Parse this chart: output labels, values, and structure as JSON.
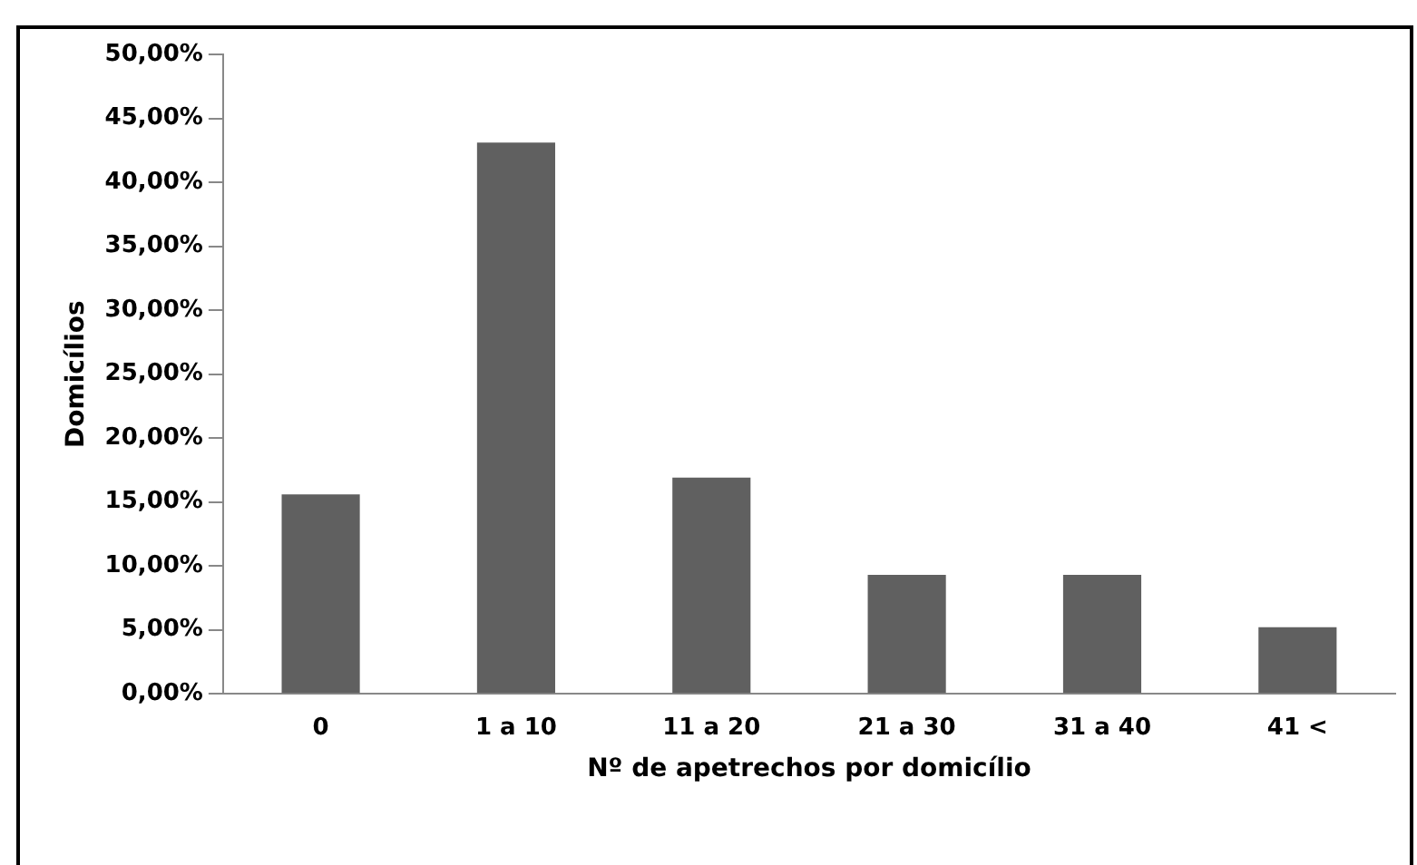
{
  "chart_data": {
    "type": "bar",
    "xlabel": "Nº de apetrechos por domicílio",
    "ylabel": "Domicílios",
    "categories": [
      "0",
      "1 a 10",
      "11 a 20",
      "21 a 30",
      "31 a 40",
      "41 <"
    ],
    "values": [
      15.6,
      43.1,
      16.9,
      9.3,
      9.3,
      5.2
    ],
    "color": "#606060",
    "ylim": [
      0,
      50
    ],
    "yticks": [
      {
        "value": 0,
        "label": "0,00%"
      },
      {
        "value": 5,
        "label": "5,00%"
      },
      {
        "value": 10,
        "label": "10,00%"
      },
      {
        "value": 15,
        "label": "15,00%"
      },
      {
        "value": 20,
        "label": "20,00%"
      },
      {
        "value": 25,
        "label": "25,00%"
      },
      {
        "value": 30,
        "label": "30,00%"
      },
      {
        "value": 35,
        "label": "35,00%"
      },
      {
        "value": 40,
        "label": "40,00%"
      },
      {
        "value": 45,
        "label": "45,00%"
      },
      {
        "value": 50,
        "label": "50,00%"
      }
    ],
    "grid": false,
    "legend": false
  }
}
